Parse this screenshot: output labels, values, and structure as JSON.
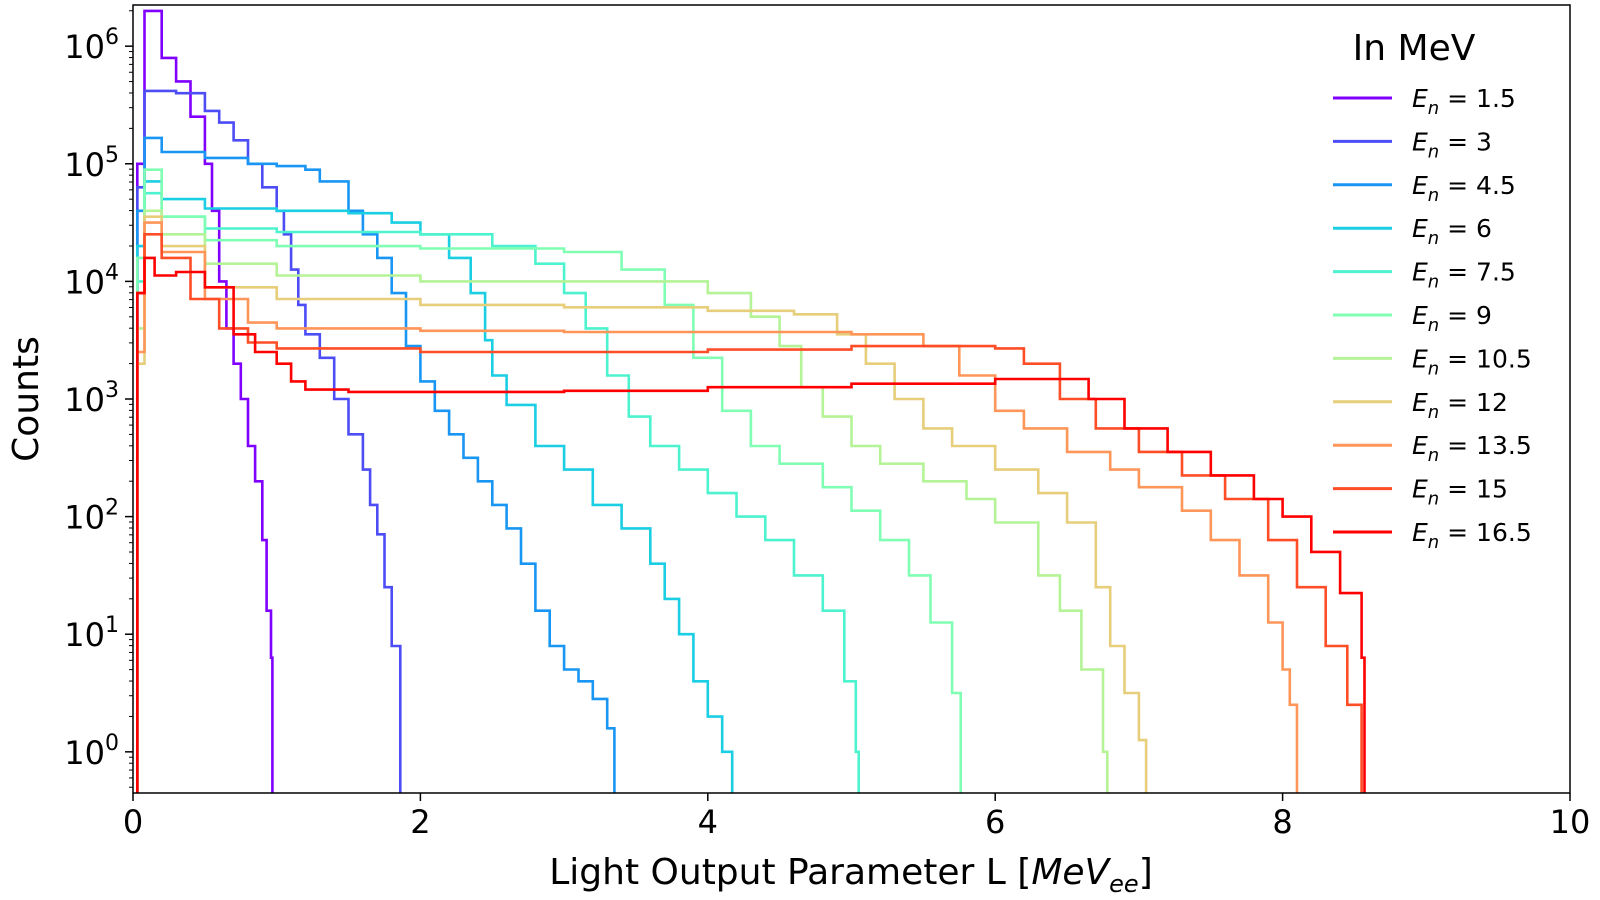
{
  "chart_data": {
    "type": "line",
    "xlabel": "Light Output Parameter L [MeV_ee]",
    "xlabel_main": "Light Output Parameter L [",
    "xlabel_unit": "MeV",
    "xlabel_sub": "ee",
    "xlabel_end": "]",
    "ylabel": "Counts",
    "xlim": [
      0,
      10
    ],
    "ylim_log10": [
      -0.35,
      6.35
    ],
    "yscale": "log",
    "grid": false,
    "legend": {
      "title": "In MeV",
      "placement": "top-right",
      "symbol": "E",
      "subscript": "n",
      "equals": "="
    },
    "x_ticks": [
      "0",
      "2",
      "4",
      "6",
      "8",
      "10"
    ],
    "x_tick_values": [
      0,
      2,
      4,
      6,
      8,
      10
    ],
    "y_ticks": [
      {
        "base": "10",
        "exp": "0",
        "log": 0
      },
      {
        "base": "10",
        "exp": "1",
        "log": 1
      },
      {
        "base": "10",
        "exp": "2",
        "log": 2
      },
      {
        "base": "10",
        "exp": "3",
        "log": 3
      },
      {
        "base": "10",
        "exp": "4",
        "log": 4
      },
      {
        "base": "10",
        "exp": "5",
        "log": 5
      },
      {
        "base": "10",
        "exp": "6",
        "log": 6
      }
    ],
    "series": [
      {
        "name": "1.5",
        "color": "#8000ff",
        "points": [
          [
            0.03,
            5.0
          ],
          [
            0.08,
            6.3
          ],
          [
            0.15,
            6.3
          ],
          [
            0.2,
            5.9
          ],
          [
            0.3,
            5.7
          ],
          [
            0.4,
            5.4
          ],
          [
            0.5,
            5.0
          ],
          [
            0.55,
            4.6
          ],
          [
            0.6,
            4.0
          ],
          [
            0.65,
            3.6
          ],
          [
            0.7,
            3.3
          ],
          [
            0.75,
            3.0
          ],
          [
            0.8,
            2.6
          ],
          [
            0.85,
            2.3
          ],
          [
            0.9,
            1.8
          ],
          [
            0.93,
            1.2
          ],
          [
            0.96,
            0.8
          ],
          [
            0.97,
            -0.35
          ]
        ]
      },
      {
        "name": "3",
        "color": "#4d4df6",
        "points": [
          [
            0.03,
            4.8
          ],
          [
            0.08,
            5.62
          ],
          [
            0.3,
            5.6
          ],
          [
            0.5,
            5.45
          ],
          [
            0.6,
            5.35
          ],
          [
            0.7,
            5.2
          ],
          [
            0.8,
            5.0
          ],
          [
            0.9,
            4.8
          ],
          [
            1.0,
            4.6
          ],
          [
            1.05,
            4.4
          ],
          [
            1.1,
            4.1
          ],
          [
            1.15,
            3.8
          ],
          [
            1.2,
            3.55
          ],
          [
            1.3,
            3.35
          ],
          [
            1.4,
            3.0
          ],
          [
            1.5,
            2.7
          ],
          [
            1.6,
            2.4
          ],
          [
            1.65,
            2.1
          ],
          [
            1.7,
            1.85
          ],
          [
            1.75,
            1.4
          ],
          [
            1.8,
            0.9
          ],
          [
            1.86,
            -0.35
          ]
        ]
      },
      {
        "name": "4.5",
        "color": "#1996f3",
        "points": [
          [
            0.03,
            4.6
          ],
          [
            0.08,
            5.22
          ],
          [
            0.2,
            5.1
          ],
          [
            0.5,
            5.05
          ],
          [
            0.8,
            5.0
          ],
          [
            1.0,
            4.98
          ],
          [
            1.2,
            4.95
          ],
          [
            1.3,
            4.85
          ],
          [
            1.5,
            4.6
          ],
          [
            1.6,
            4.4
          ],
          [
            1.7,
            4.2
          ],
          [
            1.8,
            3.9
          ],
          [
            1.9,
            3.45
          ],
          [
            2.0,
            3.15
          ],
          [
            2.1,
            2.9
          ],
          [
            2.2,
            2.7
          ],
          [
            2.3,
            2.5
          ],
          [
            2.4,
            2.3
          ],
          [
            2.5,
            2.1
          ],
          [
            2.6,
            1.9
          ],
          [
            2.7,
            1.6
          ],
          [
            2.8,
            1.2
          ],
          [
            2.9,
            0.9
          ],
          [
            3.0,
            0.7
          ],
          [
            3.1,
            0.6
          ],
          [
            3.2,
            0.45
          ],
          [
            3.3,
            0.2
          ],
          [
            3.35,
            -0.35
          ]
        ]
      },
      {
        "name": "6",
        "color": "#1acee3",
        "points": [
          [
            0.03,
            4.3
          ],
          [
            0.08,
            4.85
          ],
          [
            0.2,
            4.7
          ],
          [
            0.5,
            4.62
          ],
          [
            1.0,
            4.6
          ],
          [
            1.5,
            4.58
          ],
          [
            1.8,
            4.5
          ],
          [
            2.0,
            4.4
          ],
          [
            2.2,
            4.2
          ],
          [
            2.35,
            3.9
          ],
          [
            2.45,
            3.5
          ],
          [
            2.5,
            3.2
          ],
          [
            2.6,
            2.95
          ],
          [
            2.8,
            2.6
          ],
          [
            3.0,
            2.4
          ],
          [
            3.2,
            2.1
          ],
          [
            3.4,
            1.9
          ],
          [
            3.6,
            1.6
          ],
          [
            3.7,
            1.3
          ],
          [
            3.8,
            1.0
          ],
          [
            3.9,
            0.6
          ],
          [
            4.0,
            0.3
          ],
          [
            4.1,
            0.0
          ],
          [
            4.17,
            -0.35
          ]
        ]
      },
      {
        "name": "7.5",
        "color": "#4df3ce",
        "points": [
          [
            0.03,
            4.0
          ],
          [
            0.08,
            4.75
          ],
          [
            0.2,
            4.55
          ],
          [
            0.5,
            4.45
          ],
          [
            1.0,
            4.42
          ],
          [
            2.0,
            4.4
          ],
          [
            2.5,
            4.3
          ],
          [
            2.8,
            4.15
          ],
          [
            3.0,
            3.9
          ],
          [
            3.15,
            3.6
          ],
          [
            3.3,
            3.2
          ],
          [
            3.45,
            2.85
          ],
          [
            3.6,
            2.6
          ],
          [
            3.8,
            2.4
          ],
          [
            4.0,
            2.2
          ],
          [
            4.2,
            2.0
          ],
          [
            4.4,
            1.8
          ],
          [
            4.6,
            1.5
          ],
          [
            4.8,
            1.2
          ],
          [
            4.95,
            0.6
          ],
          [
            5.03,
            0.0
          ],
          [
            5.05,
            -0.35
          ]
        ]
      },
      {
        "name": "9",
        "color": "#80ffb4",
        "points": [
          [
            0.03,
            4.2
          ],
          [
            0.08,
            4.95
          ],
          [
            0.2,
            4.55
          ],
          [
            0.5,
            4.35
          ],
          [
            1.0,
            4.3
          ],
          [
            2.0,
            4.28
          ],
          [
            3.0,
            4.25
          ],
          [
            3.4,
            4.1
          ],
          [
            3.7,
            3.8
          ],
          [
            3.9,
            3.35
          ],
          [
            4.1,
            2.9
          ],
          [
            4.3,
            2.6
          ],
          [
            4.5,
            2.45
          ],
          [
            4.8,
            2.25
          ],
          [
            5.0,
            2.05
          ],
          [
            5.2,
            1.8
          ],
          [
            5.4,
            1.5
          ],
          [
            5.55,
            1.1
          ],
          [
            5.7,
            0.5
          ],
          [
            5.76,
            -0.35
          ]
        ]
      },
      {
        "name": "10.5",
        "color": "#b4f396",
        "points": [
          [
            0.03,
            3.6
          ],
          [
            0.08,
            4.6
          ],
          [
            0.2,
            4.4
          ],
          [
            0.5,
            4.15
          ],
          [
            1.0,
            4.05
          ],
          [
            2.0,
            4.0
          ],
          [
            3.0,
            4.0
          ],
          [
            4.0,
            3.9
          ],
          [
            4.3,
            3.7
          ],
          [
            4.5,
            3.45
          ],
          [
            4.65,
            3.1
          ],
          [
            4.8,
            2.85
          ],
          [
            5.0,
            2.6
          ],
          [
            5.2,
            2.45
          ],
          [
            5.5,
            2.3
          ],
          [
            5.8,
            2.15
          ],
          [
            6.0,
            1.95
          ],
          [
            6.3,
            1.5
          ],
          [
            6.45,
            1.2
          ],
          [
            6.6,
            0.7
          ],
          [
            6.75,
            0.0
          ],
          [
            6.78,
            -0.35
          ]
        ]
      },
      {
        "name": "12",
        "color": "#e6ce7a",
        "points": [
          [
            0.03,
            3.3
          ],
          [
            0.08,
            4.55
          ],
          [
            0.2,
            4.3
          ],
          [
            0.5,
            3.95
          ],
          [
            1.0,
            3.85
          ],
          [
            2.0,
            3.8
          ],
          [
            3.0,
            3.78
          ],
          [
            4.0,
            3.75
          ],
          [
            4.6,
            3.72
          ],
          [
            4.9,
            3.55
          ],
          [
            5.1,
            3.3
          ],
          [
            5.3,
            3.0
          ],
          [
            5.5,
            2.75
          ],
          [
            5.7,
            2.6
          ],
          [
            6.0,
            2.4
          ],
          [
            6.3,
            2.2
          ],
          [
            6.5,
            1.95
          ],
          [
            6.7,
            1.4
          ],
          [
            6.8,
            0.9
          ],
          [
            6.9,
            0.5
          ],
          [
            7.0,
            0.1
          ],
          [
            7.05,
            -0.35
          ]
        ]
      },
      {
        "name": "13.5",
        "color": "#ff9659",
        "points": [
          [
            0.03,
            3.4
          ],
          [
            0.08,
            4.5
          ],
          [
            0.2,
            4.25
          ],
          [
            0.5,
            3.85
          ],
          [
            0.8,
            3.65
          ],
          [
            1.0,
            3.6
          ],
          [
            2.0,
            3.58
          ],
          [
            3.0,
            3.57
          ],
          [
            4.0,
            3.57
          ],
          [
            5.0,
            3.55
          ],
          [
            5.5,
            3.45
          ],
          [
            5.75,
            3.2
          ],
          [
            6.0,
            2.9
          ],
          [
            6.2,
            2.75
          ],
          [
            6.5,
            2.55
          ],
          [
            6.8,
            2.4
          ],
          [
            7.0,
            2.25
          ],
          [
            7.3,
            2.05
          ],
          [
            7.5,
            1.8
          ],
          [
            7.7,
            1.5
          ],
          [
            7.9,
            1.1
          ],
          [
            8.0,
            0.7
          ],
          [
            8.05,
            0.4
          ],
          [
            8.1,
            -0.35
          ]
        ]
      },
      {
        "name": "15",
        "color": "#ff4d27",
        "points": [
          [
            0.03,
            3.9
          ],
          [
            0.08,
            4.4
          ],
          [
            0.2,
            4.2
          ],
          [
            0.4,
            3.85
          ],
          [
            0.6,
            3.6
          ],
          [
            0.8,
            3.48
          ],
          [
            1.0,
            3.43
          ],
          [
            2.0,
            3.4
          ],
          [
            3.0,
            3.4
          ],
          [
            4.0,
            3.42
          ],
          [
            5.0,
            3.45
          ],
          [
            5.5,
            3.45
          ],
          [
            6.0,
            3.43
          ],
          [
            6.2,
            3.3
          ],
          [
            6.45,
            3.0
          ],
          [
            6.7,
            2.75
          ],
          [
            7.0,
            2.55
          ],
          [
            7.3,
            2.35
          ],
          [
            7.6,
            2.15
          ],
          [
            7.9,
            1.8
          ],
          [
            8.1,
            1.4
          ],
          [
            8.3,
            0.9
          ],
          [
            8.45,
            0.4
          ],
          [
            8.55,
            -0.35
          ]
        ]
      },
      {
        "name": "16.5",
        "color": "#ff0000",
        "points": [
          [
            0.03,
            3.9
          ],
          [
            0.08,
            4.2
          ],
          [
            0.15,
            4.05
          ],
          [
            0.3,
            4.08
          ],
          [
            0.5,
            3.95
          ],
          [
            0.7,
            3.55
          ],
          [
            0.85,
            3.4
          ],
          [
            1.0,
            3.3
          ],
          [
            1.1,
            3.15
          ],
          [
            1.2,
            3.08
          ],
          [
            1.5,
            3.06
          ],
          [
            2.0,
            3.06
          ],
          [
            3.0,
            3.07
          ],
          [
            4.0,
            3.1
          ],
          [
            5.0,
            3.13
          ],
          [
            6.0,
            3.17
          ],
          [
            6.5,
            3.17
          ],
          [
            6.65,
            3.0
          ],
          [
            6.9,
            2.75
          ],
          [
            7.2,
            2.55
          ],
          [
            7.5,
            2.35
          ],
          [
            7.8,
            2.15
          ],
          [
            8.0,
            2.0
          ],
          [
            8.2,
            1.7
          ],
          [
            8.4,
            1.35
          ],
          [
            8.55,
            0.8
          ],
          [
            8.57,
            -0.35
          ]
        ]
      }
    ]
  }
}
